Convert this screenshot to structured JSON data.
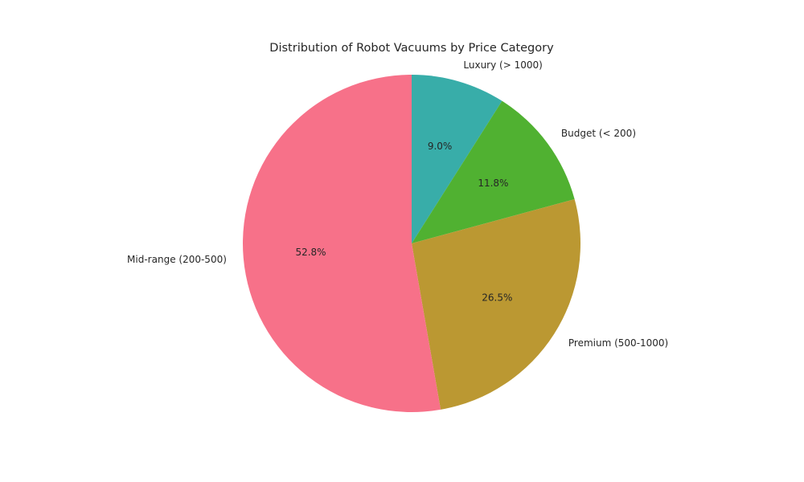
{
  "chart_data": {
    "type": "pie",
    "title": "Distribution of Robot Vacuums by Price Category",
    "slices": [
      {
        "label": "Luxury (> 1000)",
        "value": 9.0,
        "pct_label": "9.0%",
        "color": "#38ada9"
      },
      {
        "label": "Budget (< 200)",
        "value": 11.8,
        "pct_label": "11.8%",
        "color": "#50b131"
      },
      {
        "label": "Premium (500-1000)",
        "value": 26.5,
        "pct_label": "26.5%",
        "color": "#bb9832"
      },
      {
        "label": "Mid-range (200-500)",
        "value": 52.8,
        "pct_label": "52.8%",
        "color": "#f77189"
      }
    ],
    "start": "12 o'clock",
    "direction": "clockwise",
    "legend": "none"
  }
}
